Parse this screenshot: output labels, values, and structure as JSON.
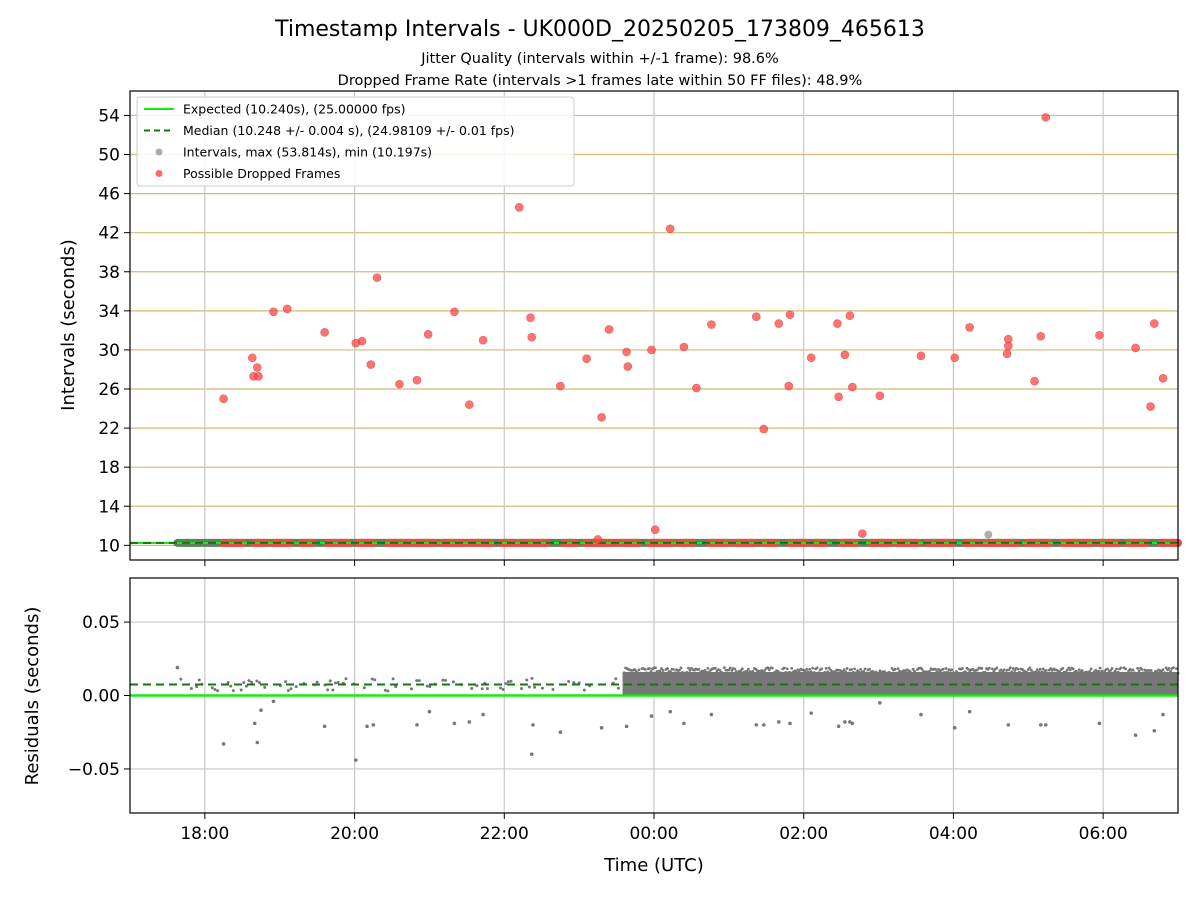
{
  "figure": {
    "title": "Timestamp Intervals - UK000D_20250205_173809_465613",
    "subtitle_1": "Jitter Quality (intervals within +/-1 frame): 98.6%",
    "subtitle_2": "Dropped Frame Rate (intervals >1 frames late within 50 FF files): 48.9%"
  },
  "colors": {
    "expected": "#11ee11",
    "median": "#117711",
    "intervals": "#999999",
    "dropped": "#ff4444",
    "hgrid": "#d1bb77",
    "vgrid": "#c8c8c8",
    "residual_points": "#777777"
  },
  "chart_data": [
    {
      "type": "scatter",
      "panel": "intervals",
      "xlabel": "",
      "ylabel": "Intervals (seconds)",
      "xlim": [
        "17:00",
        "07:00"
      ],
      "ylim": [
        8.5,
        56.5
      ],
      "xticks": [
        "18:00",
        "20:00",
        "22:00",
        "00:00",
        "02:00",
        "04:00",
        "06:00"
      ],
      "yticks": [
        10,
        14,
        18,
        22,
        26,
        30,
        34,
        38,
        42,
        46,
        50,
        54
      ],
      "grid": "horizontal gold, vertical gray",
      "legend_position": "top-left",
      "legend": [
        {
          "key": "expected",
          "label": "Expected (10.240s), (25.00000 fps)"
        },
        {
          "key": "median",
          "label": "Median (10.248 +/- 0.004 s), (24.98109 +/- 0.01 fps)"
        },
        {
          "key": "intervals",
          "label": "Intervals, max (53.814s), min (10.197s)"
        },
        {
          "key": "dropped",
          "label": "Possible Dropped Frames"
        }
      ],
      "expected_value": 10.24,
      "median_value": 10.248,
      "intervals_x_range": [
        "17:38",
        "07:00"
      ],
      "intervals_typical_value": 10.25,
      "dropped_frames": [
        {
          "x": "18:15",
          "y": 25.0
        },
        {
          "x": "18:38",
          "y": 29.2
        },
        {
          "x": "18:39",
          "y": 27.3
        },
        {
          "x": "18:42",
          "y": 28.2
        },
        {
          "x": "18:43",
          "y": 27.3
        },
        {
          "x": "18:55",
          "y": 33.9
        },
        {
          "x": "19:06",
          "y": 34.2
        },
        {
          "x": "19:36",
          "y": 31.8
        },
        {
          "x": "20:01",
          "y": 30.7
        },
        {
          "x": "20:06",
          "y": 30.9
        },
        {
          "x": "20:13",
          "y": 28.5
        },
        {
          "x": "20:18",
          "y": 37.4
        },
        {
          "x": "20:36",
          "y": 26.5
        },
        {
          "x": "20:50",
          "y": 26.9
        },
        {
          "x": "20:59",
          "y": 31.6
        },
        {
          "x": "21:20",
          "y": 33.9
        },
        {
          "x": "21:32",
          "y": 24.4
        },
        {
          "x": "21:43",
          "y": 31.0
        },
        {
          "x": "22:12",
          "y": 44.6
        },
        {
          "x": "22:21",
          "y": 33.3
        },
        {
          "x": "22:22",
          "y": 31.3
        },
        {
          "x": "22:45",
          "y": 26.3
        },
        {
          "x": "23:06",
          "y": 29.1
        },
        {
          "x": "23:18",
          "y": 23.1
        },
        {
          "x": "23:24",
          "y": 32.1
        },
        {
          "x": "23:38",
          "y": 29.8
        },
        {
          "x": "23:39",
          "y": 28.3
        },
        {
          "x": "23:58",
          "y": 30.0
        },
        {
          "x": "00:13",
          "y": 42.4
        },
        {
          "x": "00:24",
          "y": 30.3
        },
        {
          "x": "00:34",
          "y": 26.1
        },
        {
          "x": "00:46",
          "y": 32.6
        },
        {
          "x": "01:22",
          "y": 33.4
        },
        {
          "x": "01:28",
          "y": 21.9
        },
        {
          "x": "01:40",
          "y": 32.7
        },
        {
          "x": "01:49",
          "y": 33.6
        },
        {
          "x": "01:48",
          "y": 26.3
        },
        {
          "x": "02:06",
          "y": 29.2
        },
        {
          "x": "02:27",
          "y": 32.7
        },
        {
          "x": "02:28",
          "y": 25.2
        },
        {
          "x": "02:33",
          "y": 29.5
        },
        {
          "x": "02:37",
          "y": 33.5
        },
        {
          "x": "02:39",
          "y": 26.2
        },
        {
          "x": "03:01",
          "y": 25.3
        },
        {
          "x": "03:34",
          "y": 29.4
        },
        {
          "x": "04:01",
          "y": 29.2
        },
        {
          "x": "04:13",
          "y": 32.3
        },
        {
          "x": "04:43",
          "y": 29.6
        },
        {
          "x": "04:44",
          "y": 31.1
        },
        {
          "x": "04:44",
          "y": 30.4
        },
        {
          "x": "05:05",
          "y": 26.8
        },
        {
          "x": "05:10",
          "y": 31.4
        },
        {
          "x": "05:14",
          "y": 53.8
        },
        {
          "x": "05:57",
          "y": 31.5
        },
        {
          "x": "06:26",
          "y": 30.2
        },
        {
          "x": "06:38",
          "y": 24.2
        },
        {
          "x": "06:41",
          "y": 32.7
        },
        {
          "x": "06:48",
          "y": 27.1
        },
        {
          "x": "00:01",
          "y": 11.6
        },
        {
          "x": "02:47",
          "y": 11.2
        },
        {
          "x": "23:15",
          "y": 10.6
        }
      ],
      "gray_outlier": {
        "x": "04:28",
        "y": 11.1
      }
    },
    {
      "type": "scatter",
      "panel": "residuals",
      "xlabel": "Time (UTC)",
      "ylabel": "Residuals (seconds)",
      "xlim": [
        "17:00",
        "07:00"
      ],
      "ylim": [
        -0.08,
        0.08
      ],
      "xticks": [
        "18:00",
        "20:00",
        "22:00",
        "00:00",
        "02:00",
        "04:00",
        "06:00"
      ],
      "yticks": [
        "0.05",
        "0.00",
        "−0.05"
      ],
      "ytick_values": [
        0.05,
        0.0,
        -0.05
      ],
      "grid": "both, gray",
      "expected_value": 0.0,
      "median_value": 0.0075,
      "points_low": [
        {
          "x": "18:15",
          "y": -0.033
        },
        {
          "x": "18:42",
          "y": -0.032
        },
        {
          "x": "18:40",
          "y": -0.019
        },
        {
          "x": "18:45",
          "y": -0.01
        },
        {
          "x": "18:55",
          "y": -0.004
        },
        {
          "x": "19:36",
          "y": -0.021
        },
        {
          "x": "20:01",
          "y": -0.044
        },
        {
          "x": "20:10",
          "y": -0.021
        },
        {
          "x": "20:15",
          "y": -0.02
        },
        {
          "x": "20:50",
          "y": -0.02
        },
        {
          "x": "21:00",
          "y": -0.011
        },
        {
          "x": "21:20",
          "y": -0.019
        },
        {
          "x": "21:32",
          "y": -0.018
        },
        {
          "x": "21:43",
          "y": -0.013
        },
        {
          "x": "22:22",
          "y": -0.04
        },
        {
          "x": "22:23",
          "y": -0.02
        },
        {
          "x": "22:45",
          "y": -0.025
        },
        {
          "x": "23:18",
          "y": -0.022
        },
        {
          "x": "23:38",
          "y": -0.021
        },
        {
          "x": "23:58",
          "y": -0.014
        },
        {
          "x": "00:13",
          "y": -0.011
        },
        {
          "x": "00:24",
          "y": -0.019
        },
        {
          "x": "00:46",
          "y": -0.013
        },
        {
          "x": "01:22",
          "y": -0.02
        },
        {
          "x": "01:28",
          "y": -0.02
        },
        {
          "x": "01:40",
          "y": -0.018
        },
        {
          "x": "01:49",
          "y": -0.019
        },
        {
          "x": "02:06",
          "y": -0.012
        },
        {
          "x": "02:28",
          "y": -0.021
        },
        {
          "x": "02:33",
          "y": -0.018
        },
        {
          "x": "02:37",
          "y": -0.018
        },
        {
          "x": "02:39",
          "y": -0.019
        },
        {
          "x": "03:01",
          "y": -0.005
        },
        {
          "x": "03:34",
          "y": -0.013
        },
        {
          "x": "04:01",
          "y": -0.022
        },
        {
          "x": "04:13",
          "y": -0.011
        },
        {
          "x": "04:44",
          "y": -0.02
        },
        {
          "x": "05:10",
          "y": -0.02
        },
        {
          "x": "05:14",
          "y": -0.02
        },
        {
          "x": "05:57",
          "y": -0.019
        },
        {
          "x": "06:26",
          "y": -0.027
        },
        {
          "x": "06:41",
          "y": -0.024
        },
        {
          "x": "06:48",
          "y": -0.013
        }
      ]
    }
  ]
}
